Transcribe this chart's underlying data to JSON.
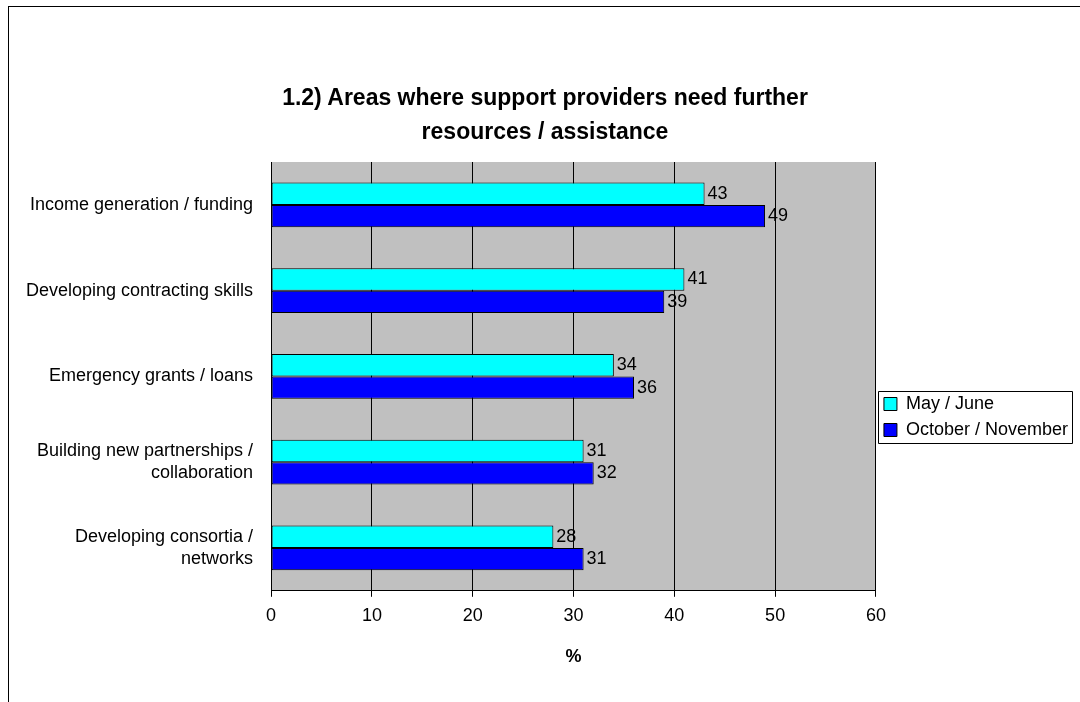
{
  "chart_data": {
    "type": "bar",
    "orientation": "horizontal",
    "title": "1.2) Areas where support providers need further resources / assistance",
    "xlabel": "%",
    "categories": [
      "Income generation / funding",
      "Developing contracting skills",
      "Emergency grants / loans",
      "Building new partnerships / collaboration",
      "Developing consortia / networks"
    ],
    "series": [
      {
        "name": "May / June",
        "color": "#00ffff",
        "values": [
          43,
          41,
          34,
          31,
          28
        ]
      },
      {
        "name": "October / November",
        "color": "#0000ff",
        "values": [
          49,
          39,
          36,
          32,
          31
        ]
      }
    ],
    "xlim": [
      0,
      60
    ],
    "xticks": [
      0,
      10,
      20,
      30,
      40,
      50,
      60
    ],
    "grid": "x",
    "legend": "right",
    "data_labels": true
  }
}
